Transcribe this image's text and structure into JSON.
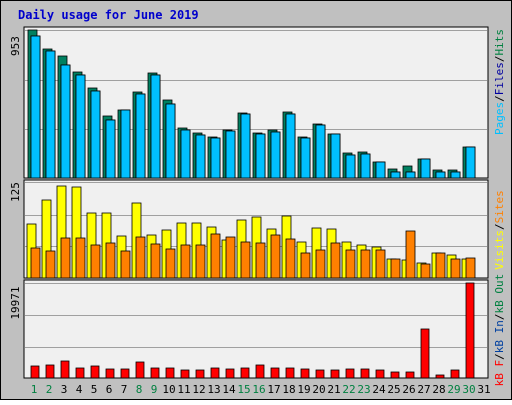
{
  "title": "Daily usage for June 2019",
  "colors": {
    "background": "#C0C0C0",
    "plot_bg": "#F0F0F0",
    "title": "#0000CC",
    "pages": "#00C0FF",
    "files": "#00A0FF",
    "hits": "#008040",
    "visits": "#FFFF00",
    "sites": "#FF8000",
    "kb_in": "#0040A0",
    "kb_out": "#008040",
    "kb_f": "#FF0000",
    "weekend_day": "#008040",
    "weekday": "#000000"
  },
  "chart_data": [
    {
      "type": "bar",
      "panel": "top",
      "y_max_label": "953",
      "ylim": [
        0,
        953
      ],
      "grid": true,
      "legend": [
        {
          "label": "Pages",
          "color": "#00C0FF"
        },
        {
          "label": "Files",
          "color": "#0000A0"
        },
        {
          "label": "Hits",
          "color": "#008040"
        }
      ],
      "categories": [
        "1",
        "2",
        "3",
        "4",
        "5",
        "6",
        "7",
        "8",
        "9",
        "10",
        "11",
        "12",
        "13",
        "14",
        "15",
        "16",
        "17",
        "18",
        "19",
        "20",
        "21",
        "22",
        "23",
        "24",
        "25",
        "26",
        "27",
        "28",
        "29",
        "30",
        "31"
      ],
      "series": [
        {
          "name": "Hits",
          "values": [
            953,
            830,
            785,
            680,
            580,
            400,
            440,
            555,
            675,
            500,
            320,
            290,
            265,
            310,
            420,
            290,
            310,
            425,
            265,
            350,
            285,
            160,
            165,
            105,
            55,
            75,
            125,
            50,
            50,
            200,
            0
          ]
        },
        {
          "name": "Files",
          "values": [
            915,
            820,
            730,
            665,
            560,
            375,
            440,
            540,
            665,
            475,
            310,
            280,
            260,
            300,
            410,
            285,
            295,
            415,
            255,
            340,
            285,
            150,
            155,
            100,
            40,
            40,
            120,
            40,
            40,
            200,
            0
          ]
        },
        {
          "name": "Pages",
          "values": [
            915,
            820,
            730,
            665,
            560,
            375,
            440,
            540,
            665,
            475,
            310,
            280,
            260,
            300,
            410,
            285,
            295,
            415,
            255,
            340,
            285,
            150,
            155,
            100,
            40,
            40,
            120,
            40,
            40,
            200,
            0
          ]
        }
      ]
    },
    {
      "type": "bar",
      "panel": "middle",
      "y_max_label": "125",
      "ylim": [
        0,
        125
      ],
      "grid": true,
      "legend": [
        {
          "label": "Visits",
          "color": "#FFFF00"
        },
        {
          "label": "Sites",
          "color": "#FF8000"
        }
      ],
      "categories": [
        "1",
        "2",
        "3",
        "4",
        "5",
        "6",
        "7",
        "8",
        "9",
        "10",
        "11",
        "12",
        "13",
        "14",
        "15",
        "16",
        "17",
        "18",
        "19",
        "20",
        "21",
        "22",
        "23",
        "24",
        "25",
        "26",
        "27",
        "28",
        "29",
        "30",
        "31"
      ],
      "series": [
        {
          "name": "Visits",
          "values": [
            70,
            102,
            120,
            118,
            84,
            85,
            55,
            98,
            56,
            62,
            71,
            71,
            67,
            49,
            76,
            80,
            64,
            81,
            47,
            65,
            64,
            47,
            43,
            41,
            25,
            24,
            19,
            33,
            30,
            25,
            0
          ]
        },
        {
          "name": "Sites",
          "values": [
            39,
            35,
            52,
            52,
            43,
            46,
            35,
            53,
            44,
            38,
            43,
            43,
            57,
            54,
            47,
            45,
            56,
            51,
            33,
            36,
            45,
            37,
            36,
            36,
            25,
            61,
            18,
            33,
            25,
            26,
            0
          ]
        }
      ]
    },
    {
      "type": "bar",
      "panel": "bottom",
      "y_max_label": "19971",
      "ylim": [
        0,
        19971
      ],
      "grid": true,
      "legend": [
        {
          "label": "kB F",
          "color": "#FF0000"
        },
        {
          "label": "kB In",
          "color": "#0040A0"
        },
        {
          "label": "kB Out",
          "color": "#008040"
        }
      ],
      "categories": [
        "1",
        "2",
        "3",
        "4",
        "5",
        "6",
        "7",
        "8",
        "9",
        "10",
        "11",
        "12",
        "13",
        "14",
        "15",
        "16",
        "17",
        "18",
        "19",
        "20",
        "21",
        "22",
        "23",
        "24",
        "25",
        "26",
        "27",
        "28",
        "29",
        "30",
        "31"
      ],
      "series": [
        {
          "name": "kB F",
          "values": [
            2500,
            2800,
            3500,
            2000,
            2500,
            1800,
            1800,
            3300,
            2000,
            2200,
            1600,
            1600,
            2000,
            1800,
            2000,
            2800,
            2000,
            2000,
            1800,
            1600,
            1600,
            1800,
            1800,
            1600,
            1200,
            1300,
            10400,
            600,
            1700,
            19971,
            0
          ]
        }
      ]
    }
  ]
}
